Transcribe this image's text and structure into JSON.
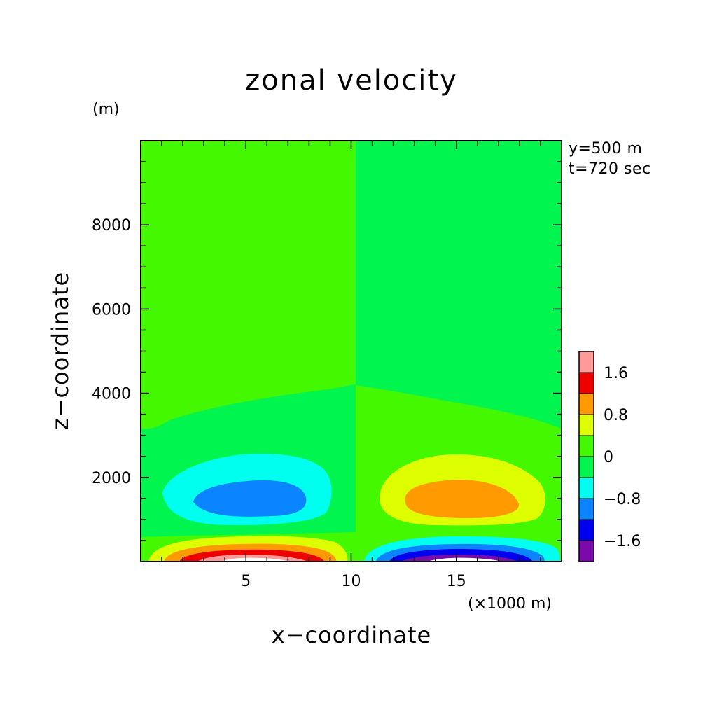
{
  "chart_data": {
    "type": "heatmap",
    "title": "zonal velocity",
    "xlabel": "x−coordinate",
    "ylabel": "z−coordinate",
    "x_unit": "(×1000 m)",
    "y_unit": "(m)",
    "xlim": [
      0,
      20
    ],
    "ylim": [
      0,
      10000
    ],
    "x_ticks": [
      5,
      10,
      15
    ],
    "y_ticks": [
      2000,
      4000,
      6000,
      8000
    ],
    "annotations": [
      "y=500 m",
      "t=720 sec"
    ],
    "colorbar": {
      "levels": [
        -2.0,
        -1.6,
        -1.2,
        -0.8,
        -0.4,
        0.0,
        0.4,
        0.8,
        1.2,
        1.6,
        2.0
      ],
      "tick_labels": [
        "1.6",
        "0.8",
        "0",
        "−0.8",
        "−1.6"
      ],
      "tick_values": [
        1.6,
        0.8,
        0.0,
        -0.8,
        -1.6
      ],
      "colors": [
        "#7a0aaa",
        "#0000ee",
        "#0a84ff",
        "#00ffee",
        "#00f54e",
        "#44f800",
        "#ddff00",
        "#ff9b00",
        "#ee0000",
        "#ff9a9a"
      ]
    },
    "background_fill": "#44f800",
    "regions": [
      {
        "name": "upper-right-band",
        "level": "-0.4 to 0",
        "color": "#00f54e"
      },
      {
        "name": "left-mid-band",
        "level": "-0.4 to 0",
        "color": "#00f54e"
      },
      {
        "name": "left-mid-cyan",
        "level": "-0.8 to -0.4",
        "color": "#00ffee"
      },
      {
        "name": "left-mid-blue",
        "level": "-1.2 to -0.8",
        "color": "#0a84ff"
      },
      {
        "name": "right-mid-yellow",
        "level": "0.4 to 0.8",
        "color": "#ddff00"
      },
      {
        "name": "right-mid-orange",
        "level": "0.8 to 1.2",
        "color": "#ff9b00"
      },
      {
        "name": "left-bottom-yellow",
        "level": "0.4 to 0.8",
        "color": "#ddff00"
      },
      {
        "name": "left-bottom-orange",
        "level": "0.8 to 1.2",
        "color": "#ff9b00"
      },
      {
        "name": "left-bottom-red",
        "level": "1.2 to 1.6",
        "color": "#ee0000"
      },
      {
        "name": "left-bottom-pink",
        "level": "1.6 to 2.0",
        "color": "#ff9a9a"
      },
      {
        "name": "left-bottom-core",
        "level": "> 2.0",
        "color": "#ffffff"
      },
      {
        "name": "right-bottom-cyan",
        "level": "-0.8 to -0.4",
        "color": "#00ffee"
      },
      {
        "name": "right-bottom-blue",
        "level": "-1.2 to -0.8",
        "color": "#0a84ff"
      },
      {
        "name": "right-bottom-darkblue",
        "level": "-1.6 to -1.2",
        "color": "#0000ee"
      },
      {
        "name": "right-bottom-purple",
        "level": "-2.0 to -1.6",
        "color": "#7a0aaa"
      },
      {
        "name": "right-bottom-core",
        "level": "< -2.0",
        "color": "#ffffff"
      }
    ]
  }
}
